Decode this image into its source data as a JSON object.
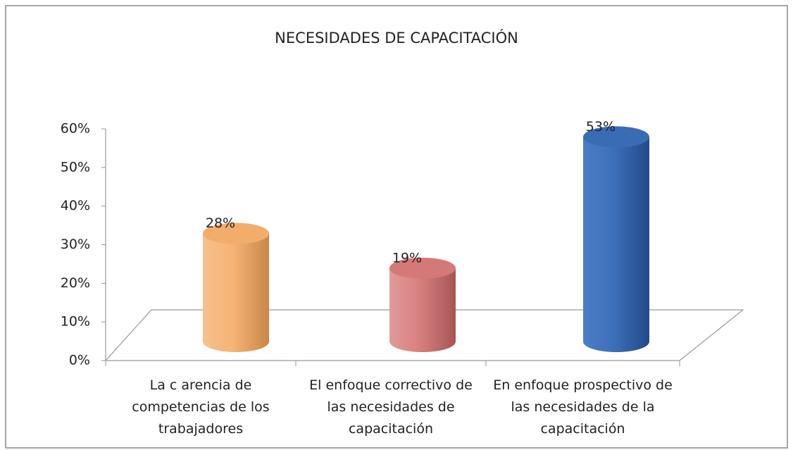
{
  "chart_data": {
    "type": "bar3d",
    "title": "NECESIDADES DE CAPACITACIÓN",
    "categories": [
      "La c arencia de competencias de los trabajadores",
      "El enfoque correctivo de las necesidades de capacitación",
      "En enfoque prospectivo de las necesidades de la capacitación"
    ],
    "values": [
      28,
      19,
      53
    ],
    "value_labels": [
      "28%",
      "19%",
      "53%"
    ],
    "colors": [
      "#f3ad6b",
      "#d57878",
      "#3a6cb6"
    ],
    "ylim": [
      0,
      60
    ],
    "yticks": [
      {
        "value": 0,
        "label": "0%"
      },
      {
        "value": 10,
        "label": "10%"
      },
      {
        "value": 20,
        "label": "20%"
      },
      {
        "value": 30,
        "label": "30%"
      },
      {
        "value": 40,
        "label": "40%"
      },
      {
        "value": 50,
        "label": "50%"
      },
      {
        "value": 60,
        "label": "60%"
      }
    ]
  }
}
